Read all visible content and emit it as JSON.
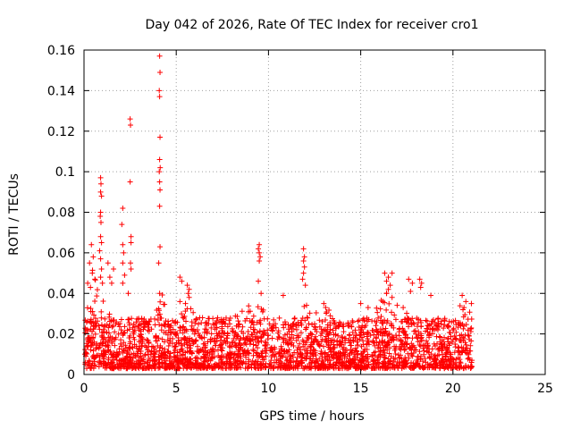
{
  "chart_data": {
    "type": "scatter",
    "title": "Day 042 of 2026, Rate Of TEC Index for receiver cro1",
    "xlabel": "GPS time / hours",
    "ylabel": "ROTI / TECUs",
    "xlim": [
      0,
      25
    ],
    "ylim": [
      0,
      0.16
    ],
    "x_ticks": [
      0,
      5,
      10,
      15,
      20,
      25
    ],
    "x_tick_labels": [
      "0",
      "5",
      "10",
      "15",
      "20",
      "25"
    ],
    "y_ticks": [
      0,
      0.02,
      0.04,
      0.06,
      0.08,
      0.1,
      0.12,
      0.14,
      0.16
    ],
    "y_tick_labels": [
      "0",
      "0.02",
      "0.04",
      "0.06",
      "0.08",
      "0.1",
      "0.12",
      "0.14",
      "0.16"
    ],
    "grid": true,
    "marker": "plus",
    "color": "#ff0000",
    "x_data_range": [
      0,
      21.05
    ],
    "base_band": [
      0.003,
      0.028
    ],
    "series": [
      {
        "points": [
          [
            4.1,
            0.157
          ],
          [
            4.12,
            0.149
          ],
          [
            4.08,
            0.14
          ],
          [
            4.1,
            0.137
          ],
          [
            4.12,
            0.117
          ],
          [
            4.1,
            0.106
          ],
          [
            4.13,
            0.102
          ],
          [
            4.08,
            0.1
          ],
          [
            4.1,
            0.095
          ],
          [
            4.12,
            0.091
          ],
          [
            4.1,
            0.083
          ],
          [
            4.12,
            0.063
          ],
          [
            4.05,
            0.055
          ],
          [
            4.1,
            0.04
          ],
          [
            2.5,
            0.126
          ],
          [
            2.52,
            0.123
          ],
          [
            2.5,
            0.095
          ],
          [
            2.55,
            0.068
          ],
          [
            2.55,
            0.065
          ],
          [
            2.52,
            0.055
          ],
          [
            2.55,
            0.052
          ],
          [
            2.4,
            0.04
          ],
          [
            0.9,
            0.097
          ],
          [
            0.92,
            0.094
          ],
          [
            0.9,
            0.09
          ],
          [
            0.95,
            0.088
          ],
          [
            0.9,
            0.08
          ],
          [
            0.88,
            0.078
          ],
          [
            0.92,
            0.075
          ],
          [
            0.9,
            0.068
          ],
          [
            0.95,
            0.065
          ],
          [
            0.85,
            0.061
          ],
          [
            0.9,
            0.057
          ],
          [
            0.95,
            0.052
          ],
          [
            0.9,
            0.048
          ],
          [
            1.0,
            0.045
          ],
          [
            2.1,
            0.082
          ],
          [
            2.05,
            0.074
          ],
          [
            2.1,
            0.064
          ],
          [
            2.15,
            0.06
          ],
          [
            2.1,
            0.055
          ],
          [
            2.2,
            0.049
          ],
          [
            2.1,
            0.045
          ],
          [
            0.4,
            0.064
          ],
          [
            0.5,
            0.058
          ],
          [
            0.3,
            0.055
          ],
          [
            0.45,
            0.05
          ],
          [
            1.3,
            0.055
          ],
          [
            1.6,
            0.052
          ],
          [
            1.4,
            0.048
          ],
          [
            1.5,
            0.045
          ],
          [
            0.2,
            0.045
          ],
          [
            0.35,
            0.043
          ],
          [
            9.5,
            0.064
          ],
          [
            9.45,
            0.062
          ],
          [
            9.5,
            0.06
          ],
          [
            9.55,
            0.058
          ],
          [
            9.5,
            0.056
          ],
          [
            9.45,
            0.046
          ],
          [
            9.6,
            0.04
          ],
          [
            11.9,
            0.062
          ],
          [
            11.95,
            0.058
          ],
          [
            11.9,
            0.056
          ],
          [
            11.95,
            0.053
          ],
          [
            11.9,
            0.05
          ],
          [
            11.85,
            0.047
          ],
          [
            12.0,
            0.044
          ],
          [
            10.8,
            0.039
          ],
          [
            13.0,
            0.035
          ],
          [
            13.1,
            0.033
          ],
          [
            5.2,
            0.048
          ],
          [
            5.3,
            0.046
          ],
          [
            5.6,
            0.044
          ],
          [
            5.7,
            0.042
          ],
          [
            5.65,
            0.04
          ],
          [
            5.7,
            0.038
          ],
          [
            5.2,
            0.036
          ],
          [
            5.5,
            0.035
          ],
          [
            16.3,
            0.05
          ],
          [
            16.7,
            0.05
          ],
          [
            16.5,
            0.048
          ],
          [
            16.4,
            0.046
          ],
          [
            16.6,
            0.044
          ],
          [
            16.5,
            0.042
          ],
          [
            16.4,
            0.04
          ],
          [
            16.7,
            0.038
          ],
          [
            16.2,
            0.036
          ],
          [
            17.6,
            0.047
          ],
          [
            17.8,
            0.045
          ],
          [
            17.7,
            0.041
          ],
          [
            18.2,
            0.047
          ],
          [
            18.3,
            0.045
          ],
          [
            18.25,
            0.043
          ],
          [
            18.8,
            0.039
          ],
          [
            20.5,
            0.039
          ],
          [
            20.7,
            0.036
          ],
          [
            20.6,
            0.033
          ],
          [
            21.0,
            0.035
          ],
          [
            15.0,
            0.035
          ],
          [
            15.4,
            0.033
          ]
        ]
      }
    ]
  }
}
